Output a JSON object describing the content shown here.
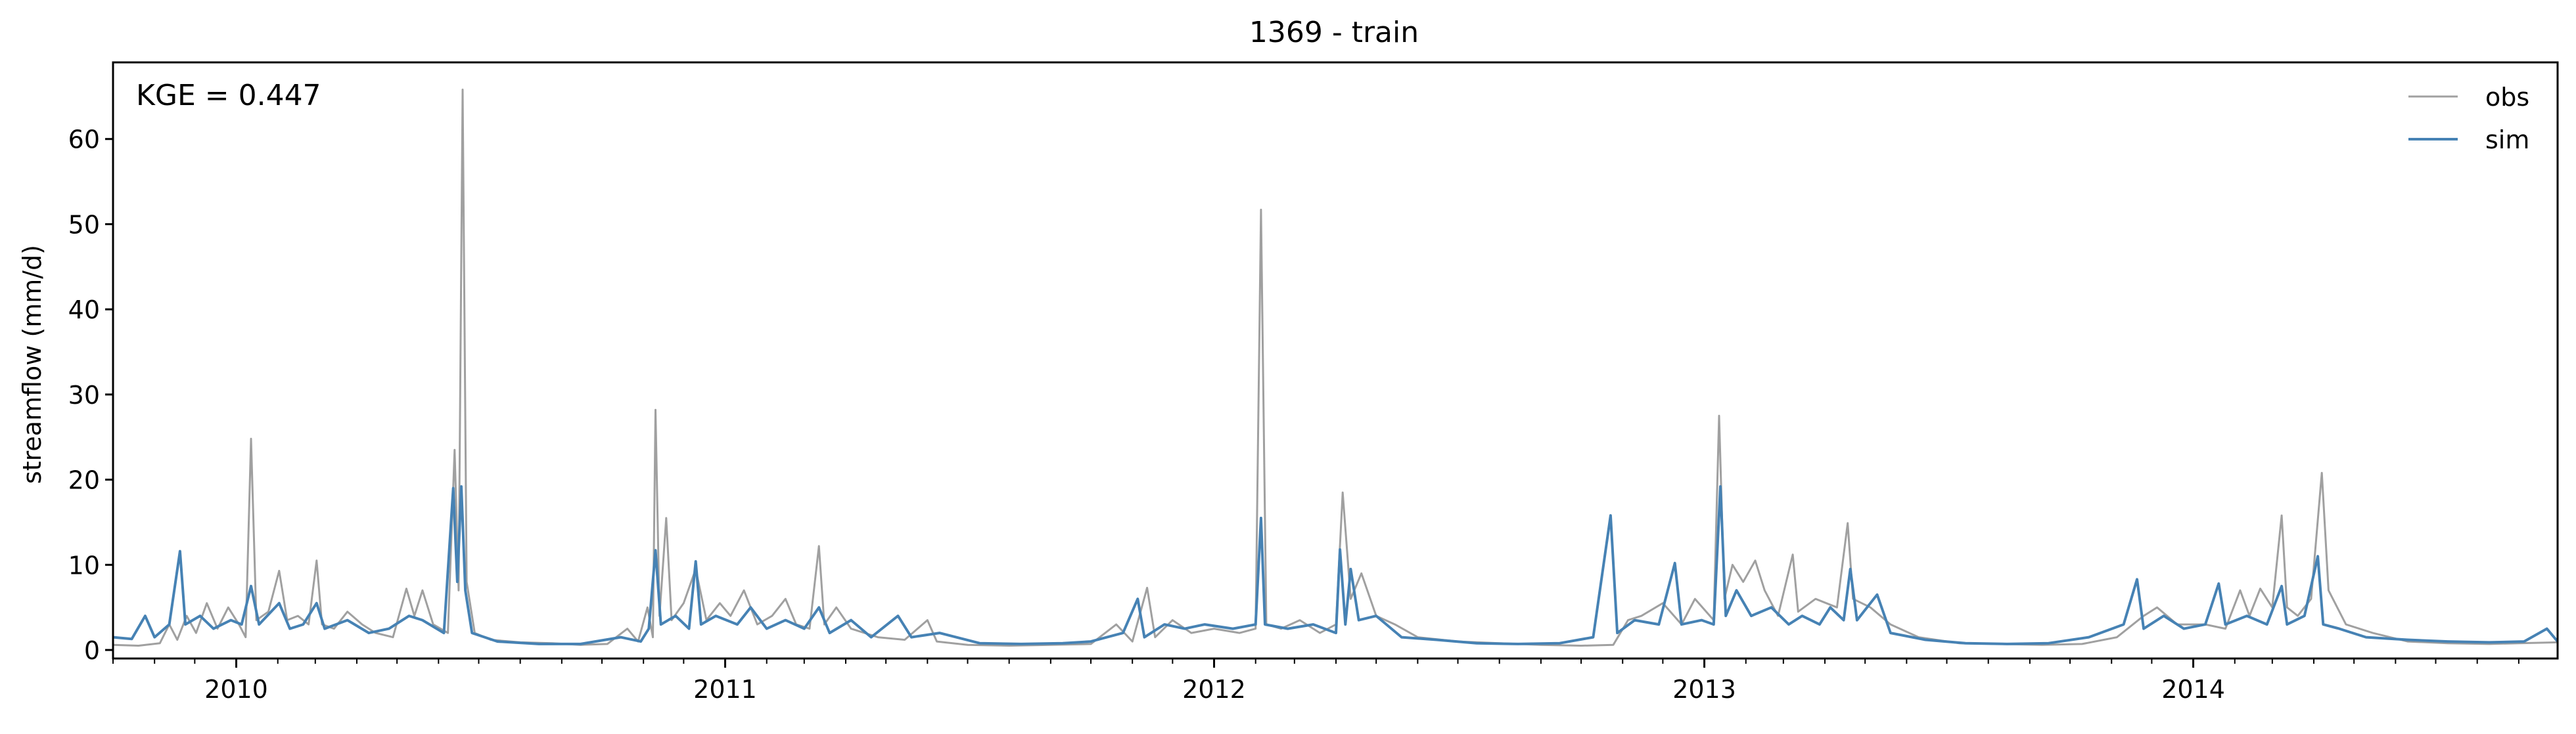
{
  "chart_data": {
    "type": "line",
    "title": "1369 - train",
    "ylabel": "streamflow (mm/d)",
    "xlabel": "",
    "ylim": [
      -1,
      69
    ],
    "xlim": [
      "2009-10-01",
      "2014-09-30"
    ],
    "yticks": [
      0,
      10,
      20,
      30,
      40,
      50,
      60
    ],
    "xticks": [
      {
        "label": "2010",
        "date": "2010-01-01"
      },
      {
        "label": "2011",
        "date": "2011-01-01"
      },
      {
        "label": "2012",
        "date": "2012-01-01"
      },
      {
        "label": "2013",
        "date": "2013-01-01"
      },
      {
        "label": "2014",
        "date": "2014-01-01"
      }
    ],
    "annotation": "KGE = 0.447",
    "grid": false,
    "legend_position": "top-right",
    "series": [
      {
        "name": "obs",
        "color": "#a0a0a0",
        "points": [
          [
            "2009-10-01",
            0.6
          ],
          [
            "2009-10-20",
            0.5
          ],
          [
            "2009-11-05",
            0.8
          ],
          [
            "2009-11-12",
            3.0
          ],
          [
            "2009-11-18",
            1.2
          ],
          [
            "2009-11-25",
            4.0
          ],
          [
            "2009-12-02",
            2.0
          ],
          [
            "2009-12-10",
            5.5
          ],
          [
            "2009-12-18",
            2.5
          ],
          [
            "2009-12-26",
            5.0
          ],
          [
            "2010-01-03",
            3.0
          ],
          [
            "2010-01-08",
            1.5
          ],
          [
            "2010-01-12",
            24.8
          ],
          [
            "2010-01-16",
            3.5
          ],
          [
            "2010-01-25",
            4.5
          ],
          [
            "2010-02-02",
            9.3
          ],
          [
            "2010-02-08",
            3.5
          ],
          [
            "2010-02-16",
            4.0
          ],
          [
            "2010-02-24",
            3.0
          ],
          [
            "2010-03-02",
            10.5
          ],
          [
            "2010-03-06",
            3.0
          ],
          [
            "2010-03-15",
            2.5
          ],
          [
            "2010-03-25",
            4.5
          ],
          [
            "2010-04-05",
            3.0
          ],
          [
            "2010-04-15",
            2.0
          ],
          [
            "2010-04-28",
            1.5
          ],
          [
            "2010-05-08",
            7.2
          ],
          [
            "2010-05-14",
            4.0
          ],
          [
            "2010-05-20",
            7.0
          ],
          [
            "2010-05-28",
            3.0
          ],
          [
            "2010-06-08",
            2.0
          ],
          [
            "2010-06-13",
            23.5
          ],
          [
            "2010-06-16",
            7.0
          ],
          [
            "2010-06-19",
            65.8
          ],
          [
            "2010-06-22",
            8.0
          ],
          [
            "2010-06-28",
            2.0
          ],
          [
            "2010-07-10",
            1.2
          ],
          [
            "2010-08-01",
            0.9
          ],
          [
            "2010-08-25",
            0.8
          ],
          [
            "2010-09-15",
            0.6
          ],
          [
            "2010-10-05",
            0.7
          ],
          [
            "2010-10-20",
            2.5
          ],
          [
            "2010-10-28",
            1.0
          ],
          [
            "2010-11-04",
            5.0
          ],
          [
            "2010-11-08",
            1.5
          ],
          [
            "2010-11-10",
            28.2
          ],
          [
            "2010-11-13",
            4.0
          ],
          [
            "2010-11-18",
            15.5
          ],
          [
            "2010-11-22",
            3.5
          ],
          [
            "2010-12-01",
            5.5
          ],
          [
            "2010-12-10",
            9.5
          ],
          [
            "2010-12-18",
            3.5
          ],
          [
            "2010-12-28",
            5.5
          ],
          [
            "2011-01-05",
            4.0
          ],
          [
            "2011-01-15",
            7.0
          ],
          [
            "2011-01-25",
            3.0
          ],
          [
            "2011-02-05",
            4.0
          ],
          [
            "2011-02-15",
            6.0
          ],
          [
            "2011-02-23",
            3.0
          ],
          [
            "2011-03-05",
            2.5
          ],
          [
            "2011-03-12",
            12.2
          ],
          [
            "2011-03-16",
            3.0
          ],
          [
            "2011-03-25",
            5.0
          ],
          [
            "2011-04-05",
            2.5
          ],
          [
            "2011-04-25",
            1.5
          ],
          [
            "2011-05-15",
            1.2
          ],
          [
            "2011-06-01",
            3.5
          ],
          [
            "2011-06-08",
            1.0
          ],
          [
            "2011-07-01",
            0.6
          ],
          [
            "2011-08-01",
            0.5
          ],
          [
            "2011-09-01",
            0.6
          ],
          [
            "2011-10-01",
            0.7
          ],
          [
            "2011-10-20",
            3.0
          ],
          [
            "2011-11-01",
            1.0
          ],
          [
            "2011-11-12",
            7.3
          ],
          [
            "2011-11-18",
            1.5
          ],
          [
            "2011-12-01",
            3.5
          ],
          [
            "2011-12-15",
            2.0
          ],
          [
            "2012-01-01",
            2.5
          ],
          [
            "2012-01-20",
            2.0
          ],
          [
            "2012-02-01",
            2.5
          ],
          [
            "2012-02-05",
            51.7
          ],
          [
            "2012-02-09",
            3.0
          ],
          [
            "2012-02-20",
            2.5
          ],
          [
            "2012-03-05",
            3.5
          ],
          [
            "2012-03-20",
            2.0
          ],
          [
            "2012-04-01",
            3.0
          ],
          [
            "2012-04-06",
            18.5
          ],
          [
            "2012-04-12",
            6.0
          ],
          [
            "2012-04-20",
            9.0
          ],
          [
            "2012-05-01",
            4.0
          ],
          [
            "2012-05-15",
            3.0
          ],
          [
            "2012-06-01",
            1.5
          ],
          [
            "2012-07-01",
            1.0
          ],
          [
            "2012-08-01",
            0.8
          ],
          [
            "2012-09-01",
            0.6
          ],
          [
            "2012-10-01",
            0.5
          ],
          [
            "2012-10-25",
            0.6
          ],
          [
            "2012-11-05",
            3.5
          ],
          [
            "2012-11-15",
            4.0
          ],
          [
            "2012-12-01",
            5.5
          ],
          [
            "2012-12-15",
            3.0
          ],
          [
            "2012-12-25",
            6.0
          ],
          [
            "2013-01-08",
            3.5
          ],
          [
            "2013-01-12",
            27.5
          ],
          [
            "2013-01-16",
            6.0
          ],
          [
            "2013-01-22",
            10.0
          ],
          [
            "2013-01-30",
            8.0
          ],
          [
            "2013-02-08",
            10.5
          ],
          [
            "2013-02-15",
            7.0
          ],
          [
            "2013-02-25",
            4.0
          ],
          [
            "2013-03-08",
            11.2
          ],
          [
            "2013-03-12",
            4.5
          ],
          [
            "2013-03-25",
            6.0
          ],
          [
            "2013-04-10",
            5.0
          ],
          [
            "2013-04-18",
            14.9
          ],
          [
            "2013-04-22",
            6.0
          ],
          [
            "2013-05-05",
            5.0
          ],
          [
            "2013-05-20",
            3.0
          ],
          [
            "2013-06-10",
            1.5
          ],
          [
            "2013-07-10",
            0.8
          ],
          [
            "2013-08-10",
            0.7
          ],
          [
            "2013-09-10",
            0.6
          ],
          [
            "2013-10-10",
            0.7
          ],
          [
            "2013-11-05",
            1.5
          ],
          [
            "2013-11-25",
            4.0
          ],
          [
            "2013-12-05",
            5.0
          ],
          [
            "2013-12-20",
            3.0
          ],
          [
            "2014-01-10",
            3.0
          ],
          [
            "2014-01-25",
            2.5
          ],
          [
            "2014-02-05",
            7.0
          ],
          [
            "2014-02-12",
            4.0
          ],
          [
            "2014-02-20",
            7.2
          ],
          [
            "2014-03-01",
            5.0
          ],
          [
            "2014-03-08",
            15.8
          ],
          [
            "2014-03-12",
            5.0
          ],
          [
            "2014-03-20",
            4.0
          ],
          [
            "2014-03-30",
            6.0
          ],
          [
            "2014-04-07",
            20.8
          ],
          [
            "2014-04-12",
            7.0
          ],
          [
            "2014-04-25",
            3.0
          ],
          [
            "2014-05-15",
            2.0
          ],
          [
            "2014-06-10",
            1.0
          ],
          [
            "2014-07-10",
            0.8
          ],
          [
            "2014-08-10",
            0.7
          ],
          [
            "2014-09-01",
            0.8
          ],
          [
            "2014-09-30",
            0.9
          ]
        ]
      },
      {
        "name": "sim",
        "color": "#4682b4",
        "points": [
          [
            "2009-10-01",
            1.5
          ],
          [
            "2009-10-15",
            1.3
          ],
          [
            "2009-10-25",
            4.0
          ],
          [
            "2009-11-01",
            1.5
          ],
          [
            "2009-11-12",
            3.0
          ],
          [
            "2009-11-20",
            11.6
          ],
          [
            "2009-11-24",
            3.0
          ],
          [
            "2009-12-05",
            4.0
          ],
          [
            "2009-12-15",
            2.5
          ],
          [
            "2009-12-28",
            3.5
          ],
          [
            "2010-01-05",
            3.0
          ],
          [
            "2010-01-12",
            7.5
          ],
          [
            "2010-01-18",
            3.0
          ],
          [
            "2010-02-02",
            5.5
          ],
          [
            "2010-02-10",
            2.5
          ],
          [
            "2010-02-20",
            3.0
          ],
          [
            "2010-03-02",
            5.5
          ],
          [
            "2010-03-08",
            2.5
          ],
          [
            "2010-03-25",
            3.5
          ],
          [
            "2010-04-10",
            2.0
          ],
          [
            "2010-04-25",
            2.5
          ],
          [
            "2010-05-10",
            4.0
          ],
          [
            "2010-05-20",
            3.5
          ],
          [
            "2010-06-05",
            2.0
          ],
          [
            "2010-06-12",
            19.0
          ],
          [
            "2010-06-15",
            8.0
          ],
          [
            "2010-06-18",
            19.2
          ],
          [
            "2010-06-21",
            7.0
          ],
          [
            "2010-06-26",
            2.0
          ],
          [
            "2010-07-15",
            1.0
          ],
          [
            "2010-08-15",
            0.7
          ],
          [
            "2010-09-15",
            0.7
          ],
          [
            "2010-10-15",
            1.5
          ],
          [
            "2010-10-30",
            1.0
          ],
          [
            "2010-11-05",
            2.5
          ],
          [
            "2010-11-10",
            11.7
          ],
          [
            "2010-11-14",
            3.0
          ],
          [
            "2010-11-25",
            4.0
          ],
          [
            "2010-12-05",
            2.5
          ],
          [
            "2010-12-10",
            10.4
          ],
          [
            "2010-12-14",
            3.0
          ],
          [
            "2010-12-25",
            4.0
          ],
          [
            "2011-01-10",
            3.0
          ],
          [
            "2011-01-20",
            5.0
          ],
          [
            "2011-02-01",
            2.5
          ],
          [
            "2011-02-15",
            3.5
          ],
          [
            "2011-03-01",
            2.5
          ],
          [
            "2011-03-12",
            5.0
          ],
          [
            "2011-03-20",
            2.0
          ],
          [
            "2011-04-05",
            3.5
          ],
          [
            "2011-04-20",
            1.5
          ],
          [
            "2011-05-10",
            4.0
          ],
          [
            "2011-05-20",
            1.5
          ],
          [
            "2011-06-10",
            2.0
          ],
          [
            "2011-07-10",
            0.8
          ],
          [
            "2011-08-10",
            0.7
          ],
          [
            "2011-09-10",
            0.8
          ],
          [
            "2011-10-01",
            1.0
          ],
          [
            "2011-10-25",
            2.0
          ],
          [
            "2011-11-05",
            6.0
          ],
          [
            "2011-11-10",
            1.5
          ],
          [
            "2011-11-25",
            3.0
          ],
          [
            "2011-12-10",
            2.5
          ],
          [
            "2011-12-25",
            3.0
          ],
          [
            "2012-01-15",
            2.5
          ],
          [
            "2012-02-01",
            3.0
          ],
          [
            "2012-02-05",
            15.5
          ],
          [
            "2012-02-08",
            3.0
          ],
          [
            "2012-02-25",
            2.5
          ],
          [
            "2012-03-15",
            3.0
          ],
          [
            "2012-04-01",
            2.0
          ],
          [
            "2012-04-04",
            11.8
          ],
          [
            "2012-04-08",
            3.0
          ],
          [
            "2012-04-12",
            9.5
          ],
          [
            "2012-04-18",
            3.5
          ],
          [
            "2012-05-01",
            4.0
          ],
          [
            "2012-05-20",
            1.5
          ],
          [
            "2012-06-15",
            1.2
          ],
          [
            "2012-07-15",
            0.8
          ],
          [
            "2012-08-15",
            0.7
          ],
          [
            "2012-09-15",
            0.8
          ],
          [
            "2012-10-10",
            1.5
          ],
          [
            "2012-10-23",
            15.8
          ],
          [
            "2012-10-28",
            2.0
          ],
          [
            "2012-11-10",
            3.5
          ],
          [
            "2012-11-28",
            3.0
          ],
          [
            "2012-12-10",
            10.2
          ],
          [
            "2012-12-15",
            3.0
          ],
          [
            "2012-12-30",
            3.5
          ],
          [
            "2013-01-08",
            3.0
          ],
          [
            "2013-01-13",
            19.2
          ],
          [
            "2013-01-17",
            4.0
          ],
          [
            "2013-01-25",
            7.0
          ],
          [
            "2013-02-05",
            4.0
          ],
          [
            "2013-02-20",
            5.0
          ],
          [
            "2013-03-05",
            3.0
          ],
          [
            "2013-03-15",
            4.0
          ],
          [
            "2013-03-28",
            3.0
          ],
          [
            "2013-04-05",
            5.0
          ],
          [
            "2013-04-15",
            3.5
          ],
          [
            "2013-04-20",
            9.5
          ],
          [
            "2013-04-25",
            3.5
          ],
          [
            "2013-05-10",
            6.5
          ],
          [
            "2013-05-20",
            2.0
          ],
          [
            "2013-06-15",
            1.2
          ],
          [
            "2013-07-15",
            0.8
          ],
          [
            "2013-08-15",
            0.7
          ],
          [
            "2013-09-15",
            0.8
          ],
          [
            "2013-10-15",
            1.5
          ],
          [
            "2013-11-10",
            3.0
          ],
          [
            "2013-11-20",
            8.3
          ],
          [
            "2013-11-25",
            2.5
          ],
          [
            "2013-12-10",
            4.0
          ],
          [
            "2013-12-25",
            2.5
          ],
          [
            "2014-01-10",
            3.0
          ],
          [
            "2014-01-20",
            7.8
          ],
          [
            "2014-01-25",
            3.0
          ],
          [
            "2014-02-10",
            4.0
          ],
          [
            "2014-02-25",
            3.0
          ],
          [
            "2014-03-08",
            7.5
          ],
          [
            "2014-03-12",
            3.0
          ],
          [
            "2014-03-25",
            4.0
          ],
          [
            "2014-04-04",
            11.0
          ],
          [
            "2014-04-08",
            3.0
          ],
          [
            "2014-04-20",
            2.5
          ],
          [
            "2014-05-10",
            1.5
          ],
          [
            "2014-06-10",
            1.2
          ],
          [
            "2014-07-10",
            1.0
          ],
          [
            "2014-08-10",
            0.9
          ],
          [
            "2014-09-05",
            1.0
          ],
          [
            "2014-09-22",
            2.5
          ],
          [
            "2014-09-30",
            1.0
          ]
        ]
      }
    ]
  }
}
